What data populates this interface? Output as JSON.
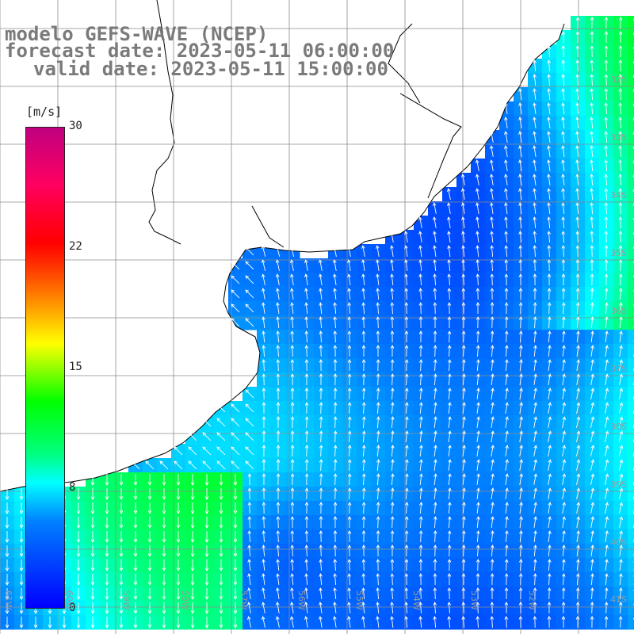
{
  "title": {
    "line1": "modelo GEFS-WAVE (NCEP)",
    "line2": "forecast date: 2023-05-11 06:00:00",
    "line3": "valid date: 2023-05-11 15:00:00"
  },
  "colorbar": {
    "unit": "[m/s]",
    "range": [
      0,
      30
    ],
    "ticks": [
      "30",
      "22",
      "15",
      "8",
      "0"
    ],
    "colors": [
      "#0000ff",
      "#0080ff",
      "#00ffff",
      "#00ff80",
      "#00ff00",
      "#ffff00",
      "#ffa500",
      "#ff0000",
      "#c00080"
    ]
  },
  "lat_labels": [
    "32S",
    "33S",
    "34S",
    "35S",
    "36S",
    "37S",
    "38S",
    "39S",
    "40S",
    "41S"
  ],
  "lon_labels": [
    "61W",
    "60W",
    "59W",
    "58W",
    "57W",
    "56W",
    "55W",
    "54W",
    "53W",
    "52W"
  ],
  "colors": {
    "land": "#ffffff",
    "coast": "#000000",
    "grid": "#8c8c8c",
    "arrow": "#ffffff"
  }
}
